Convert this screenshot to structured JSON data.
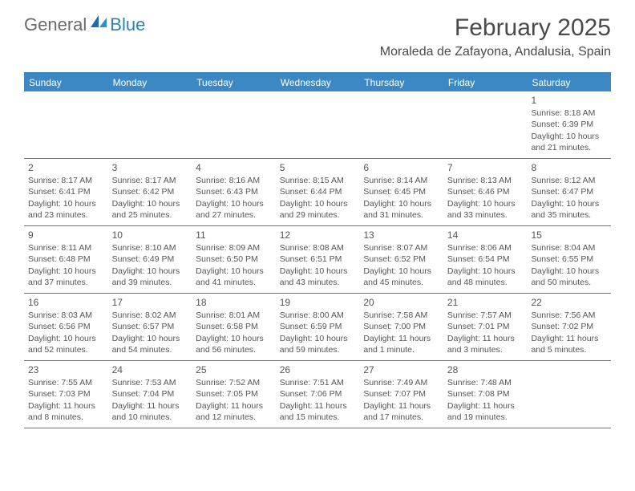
{
  "logo": {
    "general": "General",
    "blue": "Blue"
  },
  "title": "February 2025",
  "location": "Moraleda de Zafayona, Andalusia, Spain",
  "colors": {
    "header_bar": "#3b88c4",
    "header_text": "#ffffff",
    "rule": "#3b7fbf",
    "logo_gray": "#6a6a6a",
    "logo_blue": "#2a7fbf",
    "body_text": "#555555",
    "title_text": "#4a4a4a"
  },
  "dayHeaders": [
    "Sunday",
    "Monday",
    "Tuesday",
    "Wednesday",
    "Thursday",
    "Friday",
    "Saturday"
  ],
  "weeks": [
    [
      {},
      {},
      {},
      {},
      {},
      {},
      {
        "n": "1",
        "sr": "Sunrise: 8:18 AM",
        "ss": "Sunset: 6:39 PM",
        "d1": "Daylight: 10 hours",
        "d2": "and 21 minutes."
      }
    ],
    [
      {
        "n": "2",
        "sr": "Sunrise: 8:17 AM",
        "ss": "Sunset: 6:41 PM",
        "d1": "Daylight: 10 hours",
        "d2": "and 23 minutes."
      },
      {
        "n": "3",
        "sr": "Sunrise: 8:17 AM",
        "ss": "Sunset: 6:42 PM",
        "d1": "Daylight: 10 hours",
        "d2": "and 25 minutes."
      },
      {
        "n": "4",
        "sr": "Sunrise: 8:16 AM",
        "ss": "Sunset: 6:43 PM",
        "d1": "Daylight: 10 hours",
        "d2": "and 27 minutes."
      },
      {
        "n": "5",
        "sr": "Sunrise: 8:15 AM",
        "ss": "Sunset: 6:44 PM",
        "d1": "Daylight: 10 hours",
        "d2": "and 29 minutes."
      },
      {
        "n": "6",
        "sr": "Sunrise: 8:14 AM",
        "ss": "Sunset: 6:45 PM",
        "d1": "Daylight: 10 hours",
        "d2": "and 31 minutes."
      },
      {
        "n": "7",
        "sr": "Sunrise: 8:13 AM",
        "ss": "Sunset: 6:46 PM",
        "d1": "Daylight: 10 hours",
        "d2": "and 33 minutes."
      },
      {
        "n": "8",
        "sr": "Sunrise: 8:12 AM",
        "ss": "Sunset: 6:47 PM",
        "d1": "Daylight: 10 hours",
        "d2": "and 35 minutes."
      }
    ],
    [
      {
        "n": "9",
        "sr": "Sunrise: 8:11 AM",
        "ss": "Sunset: 6:48 PM",
        "d1": "Daylight: 10 hours",
        "d2": "and 37 minutes."
      },
      {
        "n": "10",
        "sr": "Sunrise: 8:10 AM",
        "ss": "Sunset: 6:49 PM",
        "d1": "Daylight: 10 hours",
        "d2": "and 39 minutes."
      },
      {
        "n": "11",
        "sr": "Sunrise: 8:09 AM",
        "ss": "Sunset: 6:50 PM",
        "d1": "Daylight: 10 hours",
        "d2": "and 41 minutes."
      },
      {
        "n": "12",
        "sr": "Sunrise: 8:08 AM",
        "ss": "Sunset: 6:51 PM",
        "d1": "Daylight: 10 hours",
        "d2": "and 43 minutes."
      },
      {
        "n": "13",
        "sr": "Sunrise: 8:07 AM",
        "ss": "Sunset: 6:52 PM",
        "d1": "Daylight: 10 hours",
        "d2": "and 45 minutes."
      },
      {
        "n": "14",
        "sr": "Sunrise: 8:06 AM",
        "ss": "Sunset: 6:54 PM",
        "d1": "Daylight: 10 hours",
        "d2": "and 48 minutes."
      },
      {
        "n": "15",
        "sr": "Sunrise: 8:04 AM",
        "ss": "Sunset: 6:55 PM",
        "d1": "Daylight: 10 hours",
        "d2": "and 50 minutes."
      }
    ],
    [
      {
        "n": "16",
        "sr": "Sunrise: 8:03 AM",
        "ss": "Sunset: 6:56 PM",
        "d1": "Daylight: 10 hours",
        "d2": "and 52 minutes."
      },
      {
        "n": "17",
        "sr": "Sunrise: 8:02 AM",
        "ss": "Sunset: 6:57 PM",
        "d1": "Daylight: 10 hours",
        "d2": "and 54 minutes."
      },
      {
        "n": "18",
        "sr": "Sunrise: 8:01 AM",
        "ss": "Sunset: 6:58 PM",
        "d1": "Daylight: 10 hours",
        "d2": "and 56 minutes."
      },
      {
        "n": "19",
        "sr": "Sunrise: 8:00 AM",
        "ss": "Sunset: 6:59 PM",
        "d1": "Daylight: 10 hours",
        "d2": "and 59 minutes."
      },
      {
        "n": "20",
        "sr": "Sunrise: 7:58 AM",
        "ss": "Sunset: 7:00 PM",
        "d1": "Daylight: 11 hours",
        "d2": "and 1 minute."
      },
      {
        "n": "21",
        "sr": "Sunrise: 7:57 AM",
        "ss": "Sunset: 7:01 PM",
        "d1": "Daylight: 11 hours",
        "d2": "and 3 minutes."
      },
      {
        "n": "22",
        "sr": "Sunrise: 7:56 AM",
        "ss": "Sunset: 7:02 PM",
        "d1": "Daylight: 11 hours",
        "d2": "and 5 minutes."
      }
    ],
    [
      {
        "n": "23",
        "sr": "Sunrise: 7:55 AM",
        "ss": "Sunset: 7:03 PM",
        "d1": "Daylight: 11 hours",
        "d2": "and 8 minutes."
      },
      {
        "n": "24",
        "sr": "Sunrise: 7:53 AM",
        "ss": "Sunset: 7:04 PM",
        "d1": "Daylight: 11 hours",
        "d2": "and 10 minutes."
      },
      {
        "n": "25",
        "sr": "Sunrise: 7:52 AM",
        "ss": "Sunset: 7:05 PM",
        "d1": "Daylight: 11 hours",
        "d2": "and 12 minutes."
      },
      {
        "n": "26",
        "sr": "Sunrise: 7:51 AM",
        "ss": "Sunset: 7:06 PM",
        "d1": "Daylight: 11 hours",
        "d2": "and 15 minutes."
      },
      {
        "n": "27",
        "sr": "Sunrise: 7:49 AM",
        "ss": "Sunset: 7:07 PM",
        "d1": "Daylight: 11 hours",
        "d2": "and 17 minutes."
      },
      {
        "n": "28",
        "sr": "Sunrise: 7:48 AM",
        "ss": "Sunset: 7:08 PM",
        "d1": "Daylight: 11 hours",
        "d2": "and 19 minutes."
      },
      {}
    ]
  ]
}
